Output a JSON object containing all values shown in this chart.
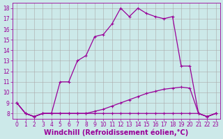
{
  "xlabel": "Windchill (Refroidissement éolien,°C)",
  "background_color": "#cce9e9",
  "line_color": "#990099",
  "xlim": [
    -0.5,
    23.5
  ],
  "ylim": [
    7.5,
    18.5
  ],
  "yticks": [
    8,
    9,
    10,
    11,
    12,
    13,
    14,
    15,
    16,
    17,
    18
  ],
  "xticks": [
    0,
    1,
    2,
    3,
    4,
    5,
    6,
    7,
    8,
    9,
    10,
    11,
    12,
    13,
    14,
    15,
    16,
    17,
    18,
    19,
    20,
    21,
    22,
    23
  ],
  "series1_x": [
    0,
    1,
    2,
    3,
    4,
    5,
    6,
    7,
    8,
    9,
    10,
    11,
    12,
    13,
    14,
    15,
    16,
    17,
    18,
    19,
    20,
    21,
    22,
    23
  ],
  "series1_y": [
    9.0,
    8.0,
    7.7,
    8.0,
    8.0,
    8.0,
    8.0,
    8.0,
    8.0,
    8.0,
    8.0,
    8.0,
    8.0,
    8.0,
    8.0,
    8.0,
    8.0,
    8.0,
    8.0,
    8.0,
    8.0,
    8.0,
    7.7,
    8.0
  ],
  "series2_x": [
    0,
    1,
    2,
    3,
    4,
    5,
    6,
    7,
    8,
    9,
    10,
    11,
    12,
    13,
    14,
    15,
    16,
    17,
    18,
    19,
    20,
    21,
    22,
    23
  ],
  "series2_y": [
    9.0,
    8.0,
    7.7,
    8.0,
    8.0,
    8.0,
    8.0,
    8.0,
    8.0,
    8.2,
    8.4,
    8.7,
    9.0,
    9.3,
    9.6,
    9.9,
    10.1,
    10.3,
    10.4,
    10.5,
    10.4,
    8.0,
    7.7,
    8.0
  ],
  "series3_x": [
    0,
    1,
    2,
    3,
    4,
    5,
    6,
    7,
    8,
    9,
    10,
    11,
    12,
    13,
    14,
    15,
    16,
    17,
    18,
    19,
    20,
    21,
    22,
    23
  ],
  "series3_y": [
    9.0,
    8.0,
    7.7,
    8.0,
    8.0,
    11.0,
    11.0,
    13.0,
    13.5,
    15.3,
    15.5,
    16.5,
    18.0,
    17.2,
    18.0,
    17.5,
    17.2,
    17.0,
    17.2,
    12.5,
    12.5,
    8.0,
    7.7,
    8.0
  ],
  "grid_color": "#aaaaaa",
  "tick_fontsize": 5.5,
  "xlabel_fontsize": 7,
  "marker": "+"
}
